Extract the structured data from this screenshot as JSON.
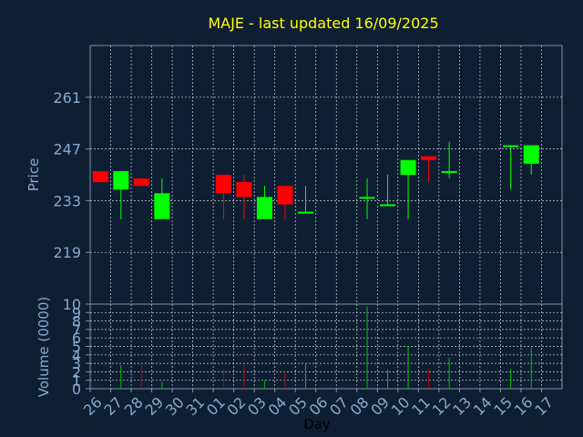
{
  "chart_data": [
    {
      "type": "candlestick",
      "title": "MAJE - last updated 16/09/2025",
      "ylabel": "Price",
      "ylim": [
        205,
        275
      ],
      "yticks": [
        219,
        233,
        247,
        261
      ],
      "grid": true,
      "x": [
        "26",
        "27",
        "28",
        "29",
        "30",
        "31",
        "01",
        "02",
        "03",
        "04",
        "05",
        "06",
        "07",
        "08",
        "09",
        "10",
        "11",
        "12",
        "13",
        "14",
        "15",
        "16",
        "17"
      ],
      "candles": [
        {
          "x": "26",
          "open": 241,
          "high": 241,
          "low": 238,
          "close": 238
        },
        {
          "x": "27",
          "open": 236,
          "high": 241,
          "low": 228,
          "close": 241
        },
        {
          "x": "28",
          "open": 239,
          "high": 239,
          "low": 237,
          "close": 237
        },
        {
          "x": "29",
          "open": 228,
          "high": 239,
          "low": 228,
          "close": 235
        },
        {
          "x": "01",
          "open": 240,
          "high": 240,
          "low": 228,
          "close": 235
        },
        {
          "x": "02",
          "open": 238,
          "high": 240,
          "low": 228,
          "close": 234
        },
        {
          "x": "03",
          "open": 228,
          "high": 237,
          "low": 228,
          "close": 234
        },
        {
          "x": "04",
          "open": 237,
          "high": 237,
          "low": 228,
          "close": 232
        },
        {
          "x": "05",
          "open": 230,
          "high": 237,
          "low": 230,
          "close": 230
        },
        {
          "x": "08",
          "open": 234,
          "high": 239,
          "low": 228,
          "close": 234
        },
        {
          "x": "09",
          "open": 232,
          "high": 240,
          "low": 232,
          "close": 232
        },
        {
          "x": "10",
          "open": 240,
          "high": 244,
          "low": 228,
          "close": 244
        },
        {
          "x": "11",
          "open": 245,
          "high": 245,
          "low": 238,
          "close": 244
        },
        {
          "x": "12",
          "open": 241,
          "high": 249,
          "low": 239,
          "close": 241
        },
        {
          "x": "15",
          "open": 248,
          "high": 248,
          "low": 236,
          "close": 248
        },
        {
          "x": "16",
          "open": 243,
          "high": 248,
          "low": 240,
          "close": 248
        }
      ]
    },
    {
      "type": "bar",
      "ylabel": "Volume (0000)",
      "xlabel": "Day",
      "ylim": [
        0,
        10
      ],
      "yticks": [
        0,
        1,
        2,
        3,
        4,
        5,
        6,
        7,
        8,
        9,
        10
      ],
      "grid": true,
      "categories": [
        "26",
        "27",
        "28",
        "29",
        "30",
        "31",
        "01",
        "02",
        "03",
        "04",
        "05",
        "06",
        "07",
        "08",
        "09",
        "10",
        "11",
        "12",
        "13",
        "14",
        "15",
        "16",
        "17"
      ],
      "values": [
        0,
        2.8,
        2.8,
        0.8,
        0,
        0,
        2.3,
        2.8,
        1,
        2,
        3,
        0,
        0,
        9.7,
        2.3,
        5,
        2.3,
        3.7,
        0,
        0,
        2.3,
        4.9,
        0
      ],
      "colors": [
        "red",
        "green",
        "red",
        "green",
        "red",
        "red",
        "red",
        "red",
        "green",
        "red",
        "green",
        "red",
        "red",
        "green",
        "green",
        "green",
        "red",
        "green",
        "red",
        "red",
        "green",
        "green",
        "red"
      ]
    }
  ],
  "colors": {
    "background": "#0f1f33",
    "axis": "#7f8fa6",
    "grid": "#c8d0d8",
    "tick_label": "#8aa8cc",
    "title": "#ffff00",
    "up": "#00ff00",
    "down": "#ff0000",
    "volume_up": "#00c000",
    "volume_down": "#c00000"
  }
}
